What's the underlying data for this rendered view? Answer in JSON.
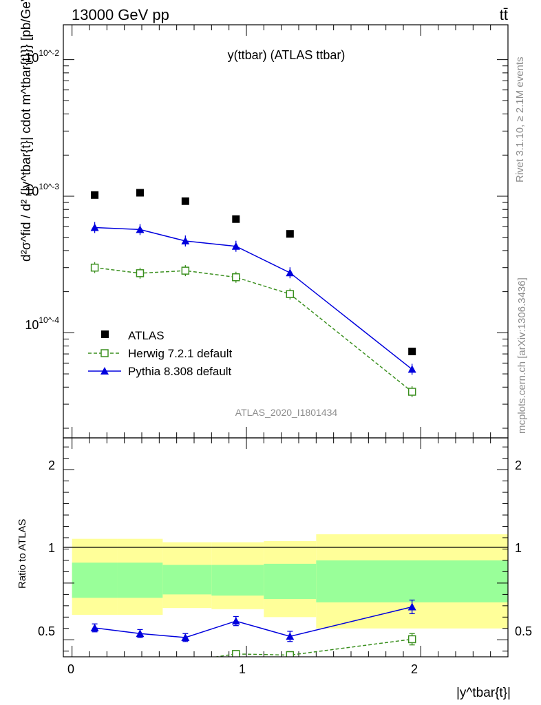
{
  "header": {
    "energy_label": "13000 GeV pp",
    "process_label": "tt̄"
  },
  "side_text": {
    "rivet": "Rivet 3.1.10, ≥ 2.1M events",
    "mcplots": "mcplots.cern.ch [arXiv:1306.3436]"
  },
  "chart_data": [
    {
      "type": "scatter",
      "panel": "main",
      "title": "y(ttbar) (ATLAS ttbar)",
      "analysis_label": "ATLAS_2020_I1801434",
      "ylabel": "d²σ^fid / d² {|y^tbar{t}| cdot m^tbar{t}}} [pb/GeV]",
      "yscale": "log",
      "ylim": [
        1.7e-05,
        0.018
      ],
      "xlim": [
        -0.05,
        2.5
      ],
      "ytick_labels": [
        "10^-2",
        "10^-3",
        "10^-4"
      ],
      "x": [
        0.13,
        0.39,
        0.65,
        0.94,
        1.25,
        1.95
      ],
      "legend_position": "lower-left",
      "series": [
        {
          "name": "ATLAS",
          "style": "black-square",
          "color": "#000000",
          "values": [
            0.00102,
            0.00106,
            0.00092,
            0.00068,
            0.00053,
            7.3e-05
          ]
        },
        {
          "name": "Herwig 7.2.1 default",
          "style": "green-open-square-dashed",
          "color": "#3a8f1e",
          "values": [
            0.0003,
            0.000273,
            0.000285,
            0.000255,
            0.000192,
            3.7e-05
          ]
        },
        {
          "name": "Pythia 8.308 default",
          "style": "blue-triangle-solid",
          "color": "#0000dd",
          "values": [
            0.00059,
            0.00057,
            0.00047,
            0.00043,
            0.000275,
            5.4e-05
          ]
        }
      ]
    },
    {
      "type": "line",
      "panel": "ratio",
      "ylabel": "Ratio to ATLAS",
      "xlabel": "|y^tbar{t}|",
      "ylim": [
        0.35,
        2.28
      ],
      "xlim": [
        -0.05,
        2.5
      ],
      "ytick_labels": [
        "0.5",
        "1",
        "2"
      ],
      "xtick_labels": [
        "0",
        "1",
        "2"
      ],
      "x": [
        0.13,
        0.39,
        0.65,
        0.94,
        1.25,
        1.95
      ],
      "bins": [
        0,
        0.26,
        0.52,
        0.8,
        1.1,
        1.4,
        2.5
      ],
      "band_inner": {
        "lo": [
          0.87,
          0.87,
          0.9,
          0.89,
          0.86,
          0.83
        ],
        "hi": [
          1.18,
          1.18,
          1.16,
          1.16,
          1.17,
          1.2
        ]
      },
      "band_outer": {
        "lo": [
          0.72,
          0.72,
          0.78,
          0.77,
          0.7,
          0.6
        ],
        "hi": [
          1.39,
          1.39,
          1.36,
          1.36,
          1.37,
          1.43
        ]
      },
      "series": [
        {
          "name": "Pythia 8.308 default",
          "color": "#0000dd",
          "values": [
            0.605,
            0.555,
            0.52,
            0.665,
            0.53,
            0.79
          ],
          "errors": [
            0.035,
            0.035,
            0.035,
            0.04,
            0.045,
            0.06
          ]
        },
        {
          "name": "Herwig 7.2.1 default",
          "color": "#3a8f1e",
          "values": [
            0.29,
            0.26,
            0.31,
            0.375,
            0.365,
            0.505
          ],
          "errors": [
            0.03,
            0.03,
            0.03,
            0.03,
            0.03,
            0.05
          ]
        }
      ]
    }
  ]
}
